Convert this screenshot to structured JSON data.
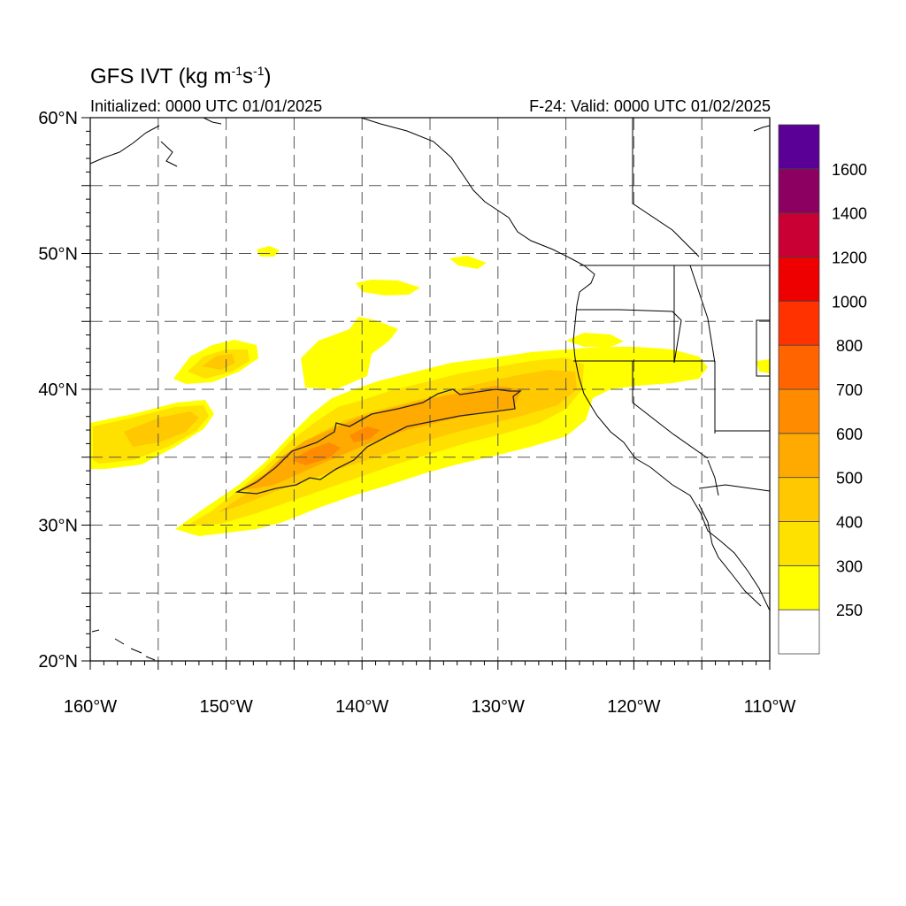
{
  "header": {
    "title_main": "GFS IVT (kg m",
    "title_exp1": "-1",
    "title_mid": "s",
    "title_exp2": "-1",
    "title_end": ")",
    "initialized": "Initialized: 0000 UTC 01/01/2025",
    "valid": "F-24: Valid: 0000 UTC 01/02/2025"
  },
  "map": {
    "lon_range": [
      -160,
      -110
    ],
    "lat_range": [
      20,
      60
    ],
    "lon_labels": [
      "160°W",
      "150°W",
      "140°W",
      "130°W",
      "120°W",
      "110°W"
    ],
    "lat_labels": [
      "60°N",
      "50°N",
      "40°N",
      "30°N",
      "20°N"
    ],
    "gridlines": "dashed, every 5 degrees"
  },
  "colorbar": {
    "labels": [
      "250",
      "300",
      "400",
      "500",
      "600",
      "700",
      "800",
      "1000",
      "1200",
      "1400",
      "1600"
    ],
    "colors": [
      "#ffffff",
      "#ffff00",
      "#ffe100",
      "#ffc800",
      "#ffaa00",
      "#ff8c00",
      "#ff6400",
      "#ff3200",
      "#ee0000",
      "#c80033",
      "#8b0060",
      "#5a0096"
    ]
  }
}
